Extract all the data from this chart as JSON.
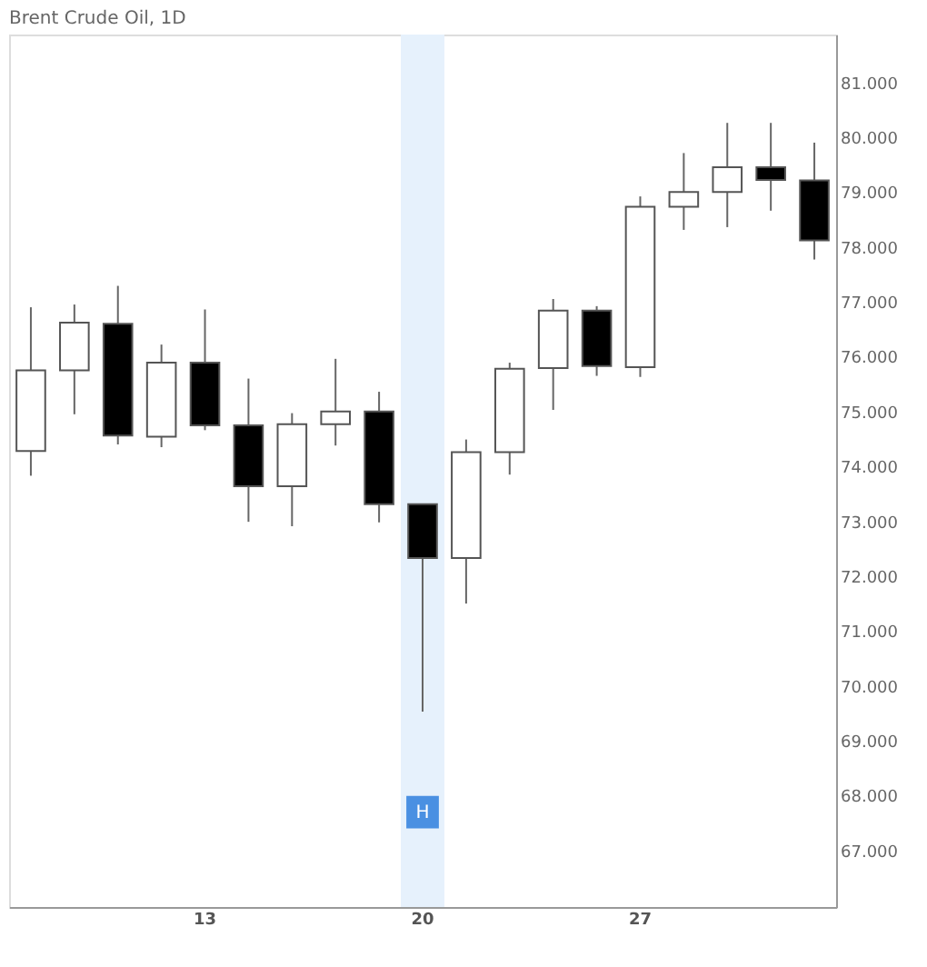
{
  "chart_data": {
    "type": "candlestick",
    "title": "Brent Crude Oil, 1D",
    "categories": [
      null,
      null,
      null,
      null,
      "13",
      null,
      null,
      null,
      null,
      "20",
      null,
      null,
      null,
      null,
      "27",
      null,
      null,
      null,
      null
    ],
    "ohlc": [
      [
        74.28,
        76.9,
        73.83,
        75.75
      ],
      [
        75.75,
        76.95,
        74.95,
        76.62
      ],
      [
        76.6,
        77.29,
        74.4,
        74.56
      ],
      [
        74.54,
        76.22,
        74.35,
        75.89
      ],
      [
        75.89,
        76.86,
        74.66,
        74.75
      ],
      [
        74.75,
        75.6,
        72.99,
        73.64
      ],
      [
        73.64,
        74.97,
        72.91,
        74.77
      ],
      [
        74.77,
        75.96,
        74.38,
        75.0
      ],
      [
        75.0,
        75.36,
        72.98,
        73.31
      ],
      [
        73.31,
        73.31,
        69.53,
        72.33
      ],
      [
        72.33,
        74.49,
        71.5,
        74.26
      ],
      [
        74.26,
        75.89,
        73.85,
        75.78
      ],
      [
        75.79,
        77.05,
        75.03,
        76.84
      ],
      [
        76.84,
        76.92,
        75.65,
        75.83
      ],
      [
        75.81,
        78.92,
        75.63,
        78.73
      ],
      [
        78.73,
        79.71,
        78.31,
        79.0
      ],
      [
        79.0,
        80.26,
        78.36,
        79.45
      ],
      [
        79.45,
        80.26,
        78.66,
        79.22
      ],
      [
        79.21,
        79.9,
        77.77,
        78.12
      ]
    ],
    "colors": [
      "#ffffff",
      "#ffffff",
      "#000000",
      "#ffffff",
      "#000000",
      "#000000",
      "#ffffff",
      "#ffffff",
      "#000000",
      "#000000",
      "#ffffff",
      "#ffffff",
      "#ffffff",
      "#000000",
      "#ffffff",
      "#ffffff",
      "#ffffff",
      "#000000",
      "#000000"
    ],
    "ylim": [
      65.97,
      81.87
    ],
    "yticks": [
      {
        "value": 67,
        "label": "67.000"
      },
      {
        "value": 68,
        "label": "68.000"
      },
      {
        "value": 69,
        "label": "69.000"
      },
      {
        "value": 70,
        "label": "70.000"
      },
      {
        "value": 71,
        "label": "71.000"
      },
      {
        "value": 72,
        "label": "72.000"
      },
      {
        "value": 73,
        "label": "73.000"
      },
      {
        "value": 74,
        "label": "74.000"
      },
      {
        "value": 75,
        "label": "75.000"
      },
      {
        "value": 76,
        "label": "76.000"
      },
      {
        "value": 77,
        "label": "77.000"
      },
      {
        "value": 78,
        "label": "78.000"
      },
      {
        "value": 79,
        "label": "79.000"
      },
      {
        "value": 80,
        "label": "80.000"
      },
      {
        "value": 81,
        "label": "81.000"
      }
    ],
    "bands": [
      {
        "axis": "x",
        "from": "20",
        "to": "20",
        "color": "#e6f1fc"
      }
    ],
    "annotations": [
      {
        "text": "H",
        "x": "20",
        "y": 67.7
      }
    ],
    "grid": false
  }
}
